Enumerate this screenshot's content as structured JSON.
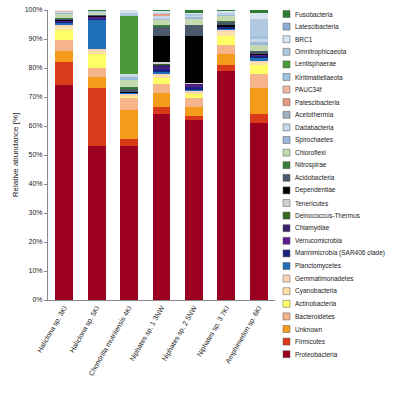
{
  "chart_data": {
    "type": "bar",
    "stacked": true,
    "grid": false,
    "legend": "right",
    "ylabel": "Relative abundance [%]",
    "ylim": [
      0,
      100
    ],
    "yticks": [
      {
        "value": 0,
        "label": "0%"
      },
      {
        "value": 10,
        "label": "10%"
      },
      {
        "value": 20,
        "label": "20%"
      },
      {
        "value": 30,
        "label": "30%"
      },
      {
        "value": 40,
        "label": "40%"
      },
      {
        "value": 50,
        "label": "50%"
      },
      {
        "value": 60,
        "label": "60%"
      },
      {
        "value": 70,
        "label": "70%"
      },
      {
        "value": 80,
        "label": "80%"
      },
      {
        "value": 90,
        "label": "90%"
      },
      {
        "value": 100,
        "label": "100%"
      }
    ],
    "categories": [
      "Haliclona sp. 3KI",
      "Haliclona sp. 5KI",
      "Chondrilla mutrilensis 4KI",
      "Niphates sp. 1 3NW",
      "Niphates sp. 2 5NW",
      "Niphates sp. 3 7KI",
      "Amphimedon sp. 6KI"
    ],
    "series": [
      {
        "name": "Proteobacteria",
        "color": "#9b0020",
        "values": [
          74,
          53,
          53,
          64,
          62,
          79,
          61
        ]
      },
      {
        "name": "Firmicutes",
        "color": "#d83a1a",
        "values": [
          8,
          20,
          2.5,
          2.5,
          1.5,
          2,
          3
        ]
      },
      {
        "name": "Unknown",
        "color": "#f59b1c",
        "values": [
          4,
          4,
          10,
          5,
          3,
          4,
          9
        ]
      },
      {
        "name": "Bacteroidetes",
        "color": "#f6b48a",
        "values": [
          3.5,
          3,
          4,
          3,
          3,
          3,
          5
        ]
      },
      {
        "name": "Actinobacteria",
        "color": "#ffff66",
        "values": [
          3.5,
          5,
          0.5,
          2,
          1.5,
          3,
          3
        ]
      },
      {
        "name": "Cyanobacteria",
        "color": "#ffe0a8",
        "values": [
          1.5,
          1,
          0.5,
          1,
          0.5,
          1.5,
          1
        ]
      },
      {
        "name": "Gemmatimonadetes",
        "color": "#fbd3b8",
        "values": [
          0.5,
          0.5,
          0.5,
          0.5,
          0.5,
          0.5,
          0.5
        ]
      },
      {
        "name": "Planctomycetes",
        "color": "#1f6fb8",
        "values": [
          0.5,
          10,
          0.3,
          0.5,
          0.5,
          0.5,
          1
        ]
      },
      {
        "name": "Marinimicrobia (SAR406 clade)",
        "color": "#1a237e",
        "values": [
          0.3,
          0.5,
          0,
          1,
          1,
          0.5,
          0.5
        ]
      },
      {
        "name": "Verrucomicrobia",
        "color": "#5b1a8e",
        "values": [
          0.3,
          0.5,
          0,
          0.5,
          0.5,
          0.3,
          0.5
        ]
      },
      {
        "name": "Chlamydiae",
        "color": "#3a1f6e",
        "values": [
          0,
          0,
          0,
          1,
          0.5,
          0,
          0
        ]
      },
      {
        "name": "Deinococcus-Thermus",
        "color": "#33691e",
        "values": [
          0,
          0,
          0,
          0.5,
          0,
          0,
          0
        ]
      },
      {
        "name": "Tenericutes",
        "color": "#d0d0d0",
        "values": [
          0.2,
          0.2,
          0,
          0.5,
          0.5,
          0,
          0
        ]
      },
      {
        "name": "Dependentiae",
        "color": "#000000",
        "values": [
          0.3,
          0.3,
          0.5,
          9,
          16,
          0.5,
          0.5
        ]
      },
      {
        "name": "Acidobacteria",
        "color": "#4b5a6b",
        "values": [
          0.4,
          0.3,
          1,
          3,
          4,
          1,
          1
        ]
      },
      {
        "name": "Nitrospirae",
        "color": "#3a7d3a",
        "values": [
          0.2,
          0,
          0.5,
          1,
          0,
          0.5,
          0
        ]
      },
      {
        "name": "Chloroflexi",
        "color": "#c5d9b0",
        "values": [
          1.5,
          0.5,
          2.5,
          1.5,
          2,
          1.5,
          2
        ]
      },
      {
        "name": "Spirochaetes",
        "color": "#9ab8d8",
        "values": [
          0.3,
          0.3,
          1,
          0.5,
          0.5,
          0.5,
          1
        ]
      },
      {
        "name": "Dadabacteria",
        "color": "#c8d8e8",
        "values": [
          0.2,
          0,
          1,
          1,
          0.5,
          0.3,
          1
        ]
      },
      {
        "name": "Acetothermia",
        "color": "#9fb0c0",
        "values": [
          0,
          0,
          0,
          0,
          0,
          0,
          0
        ]
      },
      {
        "name": "Patescibacteria",
        "color": "#e89a80",
        "values": [
          0.2,
          0,
          0,
          0.5,
          0,
          0,
          0
        ]
      },
      {
        "name": "PAUC34f",
        "color": "#f2b8a0",
        "values": [
          0.2,
          0,
          0,
          0,
          0,
          0,
          0
        ]
      },
      {
        "name": "Kiritimatiellaeota",
        "color": "#a0c4e0",
        "values": [
          0,
          0,
          0,
          0,
          0,
          0,
          1
        ]
      },
      {
        "name": "Lentisphaerae",
        "color": "#4a9a3a",
        "values": [
          0,
          0,
          20,
          0,
          0,
          0,
          0
        ]
      },
      {
        "name": "Omnitrophicaeota",
        "color": "#b0c8e0",
        "values": [
          0.2,
          0.4,
          1,
          0.5,
          0.5,
          0.5,
          6
        ]
      },
      {
        "name": "BRC1",
        "color": "#d8e4f0",
        "values": [
          0.2,
          0,
          1.2,
          0.5,
          0.5,
          0.4,
          2
        ]
      },
      {
        "name": "Latescibacteria",
        "color": "#8aaed0",
        "values": [
          0,
          0,
          0,
          0,
          0,
          0,
          0
        ]
      },
      {
        "name": "Fusobacteria",
        "color": "#2e7d32",
        "values": [
          0,
          0.5,
          0,
          0.5,
          1,
          0.5,
          1
        ]
      }
    ]
  }
}
